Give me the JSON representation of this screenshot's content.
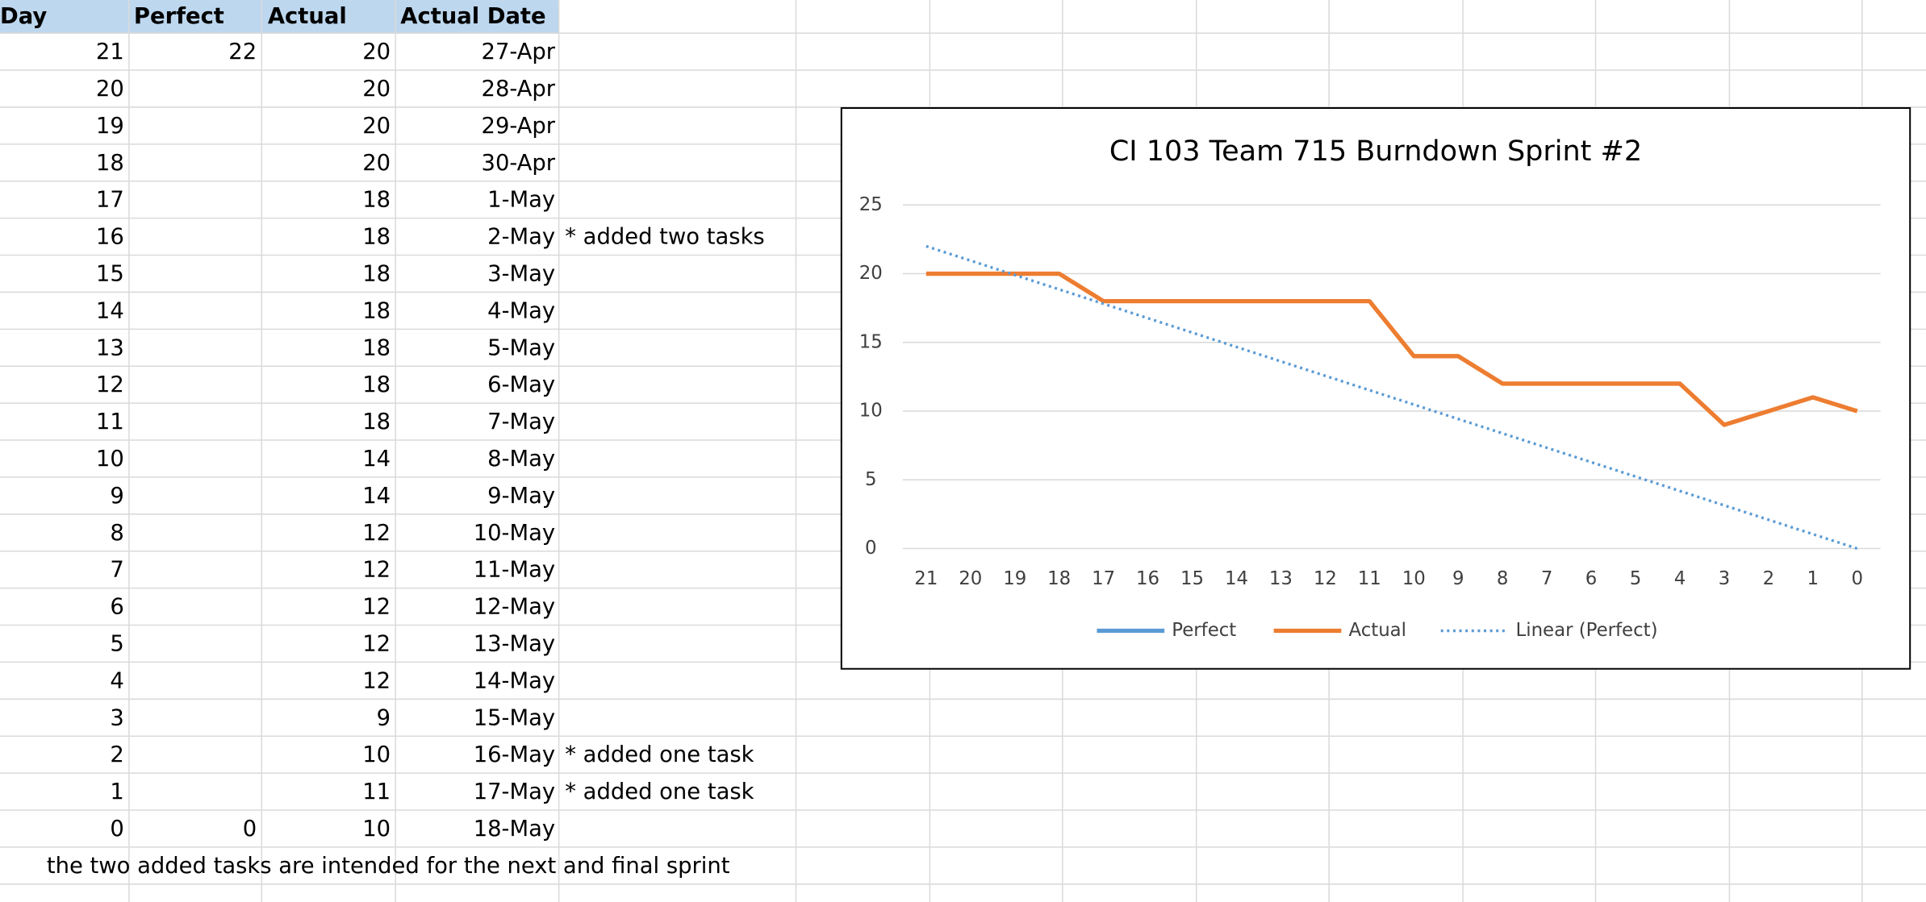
{
  "table": {
    "header": [
      "Day",
      "Perfect",
      "Actual",
      "Actual Date"
    ],
    "rows": [
      [
        21,
        22,
        20,
        "27-Apr",
        null
      ],
      [
        20,
        null,
        20,
        "28-Apr",
        null
      ],
      [
        19,
        null,
        20,
        "29-Apr",
        null
      ],
      [
        18,
        null,
        20,
        "30-Apr",
        null
      ],
      [
        17,
        null,
        18,
        "1-May",
        null
      ],
      [
        16,
        null,
        18,
        "2-May",
        "* added two tasks"
      ],
      [
        15,
        null,
        18,
        "3-May",
        null
      ],
      [
        14,
        null,
        18,
        "4-May",
        null
      ],
      [
        13,
        null,
        18,
        "5-May",
        null
      ],
      [
        12,
        null,
        18,
        "6-May",
        null
      ],
      [
        11,
        null,
        18,
        "7-May",
        null
      ],
      [
        10,
        null,
        14,
        "8-May",
        null
      ],
      [
        9,
        null,
        14,
        "9-May",
        null
      ],
      [
        8,
        null,
        12,
        "10-May",
        null
      ],
      [
        7,
        null,
        12,
        "11-May",
        null
      ],
      [
        6,
        null,
        12,
        "12-May",
        null
      ],
      [
        5,
        null,
        12,
        "13-May",
        null
      ],
      [
        4,
        null,
        12,
        "14-May",
        null
      ],
      [
        3,
        null,
        9,
        "15-May",
        null
      ],
      [
        2,
        null,
        10,
        "16-May",
        "* added one task"
      ],
      [
        1,
        null,
        11,
        "17-May",
        "* added one task"
      ],
      [
        0,
        0,
        10,
        "18-May",
        null
      ]
    ],
    "footnote": "the two added tasks are intended for the next and final sprint"
  },
  "chart_data": {
    "type": "line",
    "title": "CI 103 Team 715 Burndown Sprint #2",
    "categories": [
      21,
      20,
      19,
      18,
      17,
      16,
      15,
      14,
      13,
      12,
      11,
      10,
      9,
      8,
      7,
      6,
      5,
      4,
      3,
      2,
      1,
      0
    ],
    "series": [
      {
        "name": "Perfect",
        "color": "#5b9bd5",
        "style": "solid",
        "values": [
          22,
          null,
          null,
          null,
          null,
          null,
          null,
          null,
          null,
          null,
          null,
          null,
          null,
          null,
          null,
          null,
          null,
          null,
          null,
          null,
          null,
          0
        ]
      },
      {
        "name": "Actual",
        "color": "#ed7d31",
        "style": "solid",
        "values": [
          20,
          20,
          20,
          20,
          18,
          18,
          18,
          18,
          18,
          18,
          18,
          14,
          14,
          12,
          12,
          12,
          12,
          12,
          9,
          10,
          11,
          10
        ]
      },
      {
        "name": "Linear (Perfect)",
        "color": "#5b9bd5",
        "style": "dotted",
        "connect_gaps": true,
        "values": [
          22,
          null,
          null,
          null,
          null,
          null,
          null,
          null,
          null,
          null,
          null,
          null,
          null,
          null,
          null,
          null,
          null,
          null,
          null,
          null,
          null,
          0
        ]
      }
    ],
    "ylim": [
      0,
      25
    ],
    "yticks": [
      0,
      5,
      10,
      15,
      20,
      25
    ],
    "grid": true,
    "legend": "bottom"
  }
}
